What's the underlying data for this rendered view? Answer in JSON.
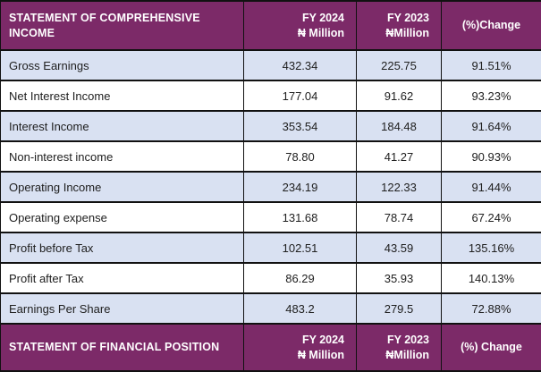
{
  "income_statement": {
    "title": "STATEMENT OF COMPREHENSIVE INCOME",
    "columns": [
      {
        "line1": "FY 2024",
        "line2": "₦ Million"
      },
      {
        "line1": "FY 2023",
        "line2": "₦Million"
      },
      {
        "line1": "(%)Change",
        "line2": ""
      }
    ],
    "rows": [
      {
        "label": "Gross Earnings",
        "fy2024": "432.34",
        "fy2023": "225.75",
        "change": "91.51%"
      },
      {
        "label": "Net Interest Income",
        "fy2024": "177.04",
        "fy2023": "91.62",
        "change": "93.23%"
      },
      {
        "label": "Interest Income",
        "fy2024": "353.54",
        "fy2023": "184.48",
        "change": "91.64%"
      },
      {
        "label": "Non-interest income",
        "fy2024": "78.80",
        "fy2023": "41.27",
        "change": "90.93%"
      },
      {
        "label": "Operating Income",
        "fy2024": "234.19",
        "fy2023": "122.33",
        "change": "91.44%"
      },
      {
        "label": "Operating expense",
        "fy2024": "131.68",
        "fy2023": "78.74",
        "change": "67.24%"
      },
      {
        "label": "Profit before Tax",
        "fy2024": "102.51",
        "fy2023": "43.59",
        "change": "135.16%"
      },
      {
        "label": "Profit after Tax",
        "fy2024": "86.29",
        "fy2023": "35.93",
        "change": "140.13%"
      },
      {
        "label": "Earnings Per Share",
        "fy2024": "483.2",
        "fy2023": "279.5",
        "change": "72.88%"
      }
    ]
  },
  "financial_position": {
    "title": "STATEMENT OF FINANCIAL POSITION",
    "columns": [
      {
        "line1": "FY 2024",
        "line2": "₦ Million"
      },
      {
        "line1": "FY 2023",
        "line2": "₦Million"
      },
      {
        "line1": "(%) Change",
        "line2": ""
      }
    ]
  },
  "colors": {
    "header_background": "#7C2A68",
    "header_text": "#FFFFFF",
    "alt_row_background": "#D9E1F2",
    "body_text": "#202020",
    "border": "#111111"
  }
}
